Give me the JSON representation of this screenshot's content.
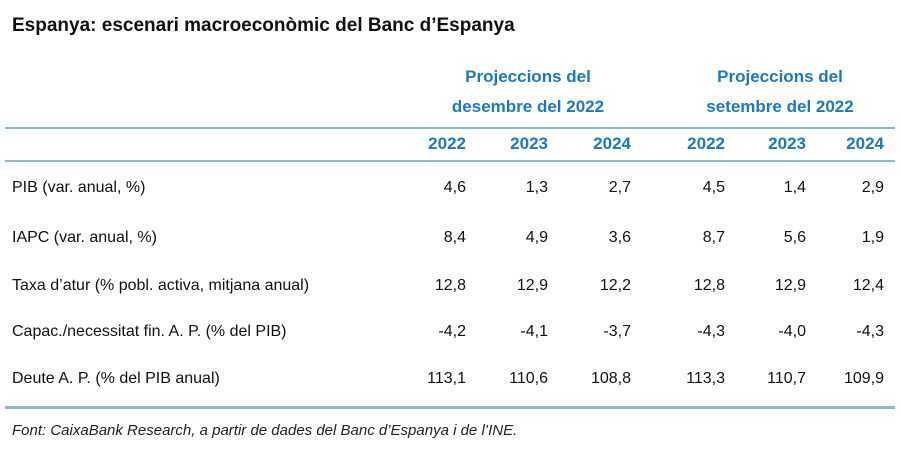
{
  "title": "Espanya: escenari macroeconòmic del Banc d’Espanya",
  "chart_data": {
    "type": "table",
    "column_groups": [
      {
        "line1": "Projeccions del",
        "line2": "desembre del 2022"
      },
      {
        "line1": "Projeccions del",
        "line2": "setembre del 2022"
      }
    ],
    "years": [
      "2022",
      "2023",
      "2024",
      "2022",
      "2023",
      "2024"
    ],
    "rows": [
      {
        "label": "PIB (var. anual, %)",
        "values": [
          "4,6",
          "1,3",
          "2,7",
          "4,5",
          "1,4",
          "2,9"
        ]
      },
      {
        "label": "IAPC (var. anual, %)",
        "values": [
          "8,4",
          "4,9",
          "3,6",
          "8,7",
          "5,6",
          "1,9"
        ]
      },
      {
        "label": "Taxa d’atur (% pobl. activa, mitjana anual)",
        "values": [
          "12,8",
          "12,9",
          "12,2",
          "12,8",
          "12,9",
          "12,4"
        ]
      },
      {
        "label": "Capac./necessitat fin. A. P. (% del PIB)",
        "values": [
          "-4,2",
          "-4,1",
          "-3,7",
          "-4,3",
          "-4,0",
          "-4,3"
        ]
      },
      {
        "label": "Deute A. P. (% del PIB anual)",
        "values": [
          "113,1",
          "110,6",
          "108,8",
          "113,3",
          "110,7",
          "109,9"
        ]
      }
    ]
  },
  "footnote": "Font: CaixaBank Research, a partir de dades del Banc d’Espanya i de l’INE.",
  "colors": {
    "accent": "#2277b5",
    "rule": "#8fb8c8"
  }
}
